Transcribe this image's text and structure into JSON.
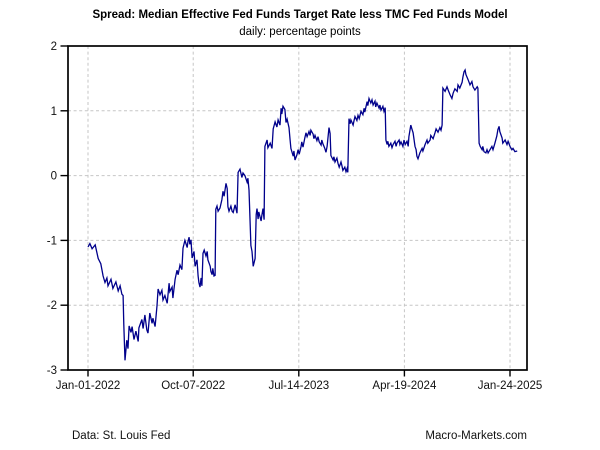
{
  "chart": {
    "title": "Spread: Median Effective Fed Funds Target Rate less TMC Fed Funds Model",
    "subtitle": "daily: percentage points",
    "footer_left": "Data: St. Louis Fed",
    "footer_right": "Macro-Markets.com",
    "line_color": "#00008b",
    "grid_color": "#c6c6c6",
    "axis_color": "#000000"
  },
  "chart_data": {
    "type": "line",
    "title": "Spread: Median Effective Fed Funds Target Rate less TMC Fed Funds Model",
    "subtitle": "daily: percentage points",
    "legend": "none",
    "grid": "dashed horizontal and vertical",
    "x_axis": {
      "unit": "days since 2022-01-01 (daily series)",
      "range": [
        0,
        1138
      ],
      "ticks": [
        {
          "day": 0,
          "label": "Jan-01-2022"
        },
        {
          "day": 279,
          "label": "Oct-07-2022"
        },
        {
          "day": 559,
          "label": "Jul-14-2023"
        },
        {
          "day": 839,
          "label": "Apr-19-2024"
        },
        {
          "day": 1119,
          "label": "Jan-24-2025"
        }
      ]
    },
    "y_axis": {
      "label": "percentage points",
      "range": [
        -3,
        2
      ],
      "ticks": [
        2,
        1,
        0,
        -1,
        -2,
        -3
      ],
      "gridlines": [
        1,
        0,
        -1,
        -2
      ]
    },
    "series": [
      {
        "name": "Spread: Median Effective Fed Funds Target Rate less TMC Fed Funds Model",
        "points": [
          [
            0,
            -1.1
          ],
          [
            5,
            -1.05
          ],
          [
            11,
            -1.13
          ],
          [
            19,
            -1.07
          ],
          [
            27,
            -1.28
          ],
          [
            34,
            -1.36
          ],
          [
            40,
            -1.55
          ],
          [
            45,
            -1.65
          ],
          [
            50,
            -1.58
          ],
          [
            53,
            -1.7
          ],
          [
            61,
            -1.6
          ],
          [
            66,
            -1.74
          ],
          [
            74,
            -1.64
          ],
          [
            80,
            -1.78
          ],
          [
            85,
            -1.7
          ],
          [
            90,
            -1.83
          ],
          [
            93,
            -1.85
          ],
          [
            95,
            -2.3
          ],
          [
            98,
            -2.85
          ],
          [
            103,
            -2.54
          ],
          [
            106,
            -2.67
          ],
          [
            109,
            -2.32
          ],
          [
            114,
            -2.42
          ],
          [
            117,
            -2.33
          ],
          [
            122,
            -2.53
          ],
          [
            127,
            -2.4
          ],
          [
            133,
            -2.56
          ],
          [
            135,
            -2.35
          ],
          [
            143,
            -2.22
          ],
          [
            146,
            -2.36
          ],
          [
            151,
            -2.15
          ],
          [
            156,
            -2.38
          ],
          [
            159,
            -2.43
          ],
          [
            164,
            -2.12
          ],
          [
            170,
            -2.28
          ],
          [
            172,
            -2.2
          ],
          [
            178,
            -2.33
          ],
          [
            183,
            -2.01
          ],
          [
            186,
            -1.75
          ],
          [
            191,
            -1.84
          ],
          [
            196,
            -1.77
          ],
          [
            199,
            -1.92
          ],
          [
            204,
            -1.85
          ],
          [
            210,
            -1.97
          ],
          [
            215,
            -1.66
          ],
          [
            217,
            -1.79
          ],
          [
            223,
            -1.72
          ],
          [
            225,
            -1.89
          ],
          [
            231,
            -1.6
          ],
          [
            236,
            -1.46
          ],
          [
            239,
            -1.53
          ],
          [
            244,
            -1.38
          ],
          [
            249,
            -1.45
          ],
          [
            252,
            -1.12
          ],
          [
            257,
            -1.0
          ],
          [
            263,
            -1.11
          ],
          [
            265,
            -1.02
          ],
          [
            268,
            -0.95
          ],
          [
            270,
            -1.06
          ],
          [
            273,
            -0.99
          ],
          [
            276,
            -1.27
          ],
          [
            281,
            -1.17
          ],
          [
            284,
            -1.4
          ],
          [
            289,
            -1.3
          ],
          [
            292,
            -1.55
          ],
          [
            294,
            -1.65
          ],
          [
            297,
            -1.72
          ],
          [
            300,
            -1.58
          ],
          [
            302,
            -1.7
          ],
          [
            305,
            -1.2
          ],
          [
            308,
            -1.15
          ],
          [
            313,
            -1.24
          ],
          [
            316,
            -1.17
          ],
          [
            318,
            -1.3
          ],
          [
            324,
            -1.4
          ],
          [
            326,
            -1.48
          ],
          [
            329,
            -1.53
          ],
          [
            331,
            -1.43
          ],
          [
            334,
            -1.55
          ],
          [
            337,
            -1.54
          ],
          [
            339,
            -0.52
          ],
          [
            342,
            -0.47
          ],
          [
            345,
            -0.55
          ],
          [
            350,
            -0.5
          ],
          [
            355,
            -0.37
          ],
          [
            358,
            -0.24
          ],
          [
            361,
            -0.32
          ],
          [
            366,
            -0.12
          ],
          [
            369,
            -0.2
          ],
          [
            371,
            -0.48
          ],
          [
            374,
            -0.55
          ],
          [
            379,
            -0.47
          ],
          [
            382,
            -0.55
          ],
          [
            385,
            -0.57
          ],
          [
            390,
            -0.45
          ],
          [
            395,
            -0.58
          ],
          [
            398,
            0.05
          ],
          [
            403,
            0.1
          ],
          [
            408,
            -0.03
          ],
          [
            411,
            0.04
          ],
          [
            416,
            0.0
          ],
          [
            422,
            -0.1
          ],
          [
            424,
            -0.04
          ],
          [
            427,
            -0.22
          ],
          [
            432,
            -1.08
          ],
          [
            435,
            -1.17
          ],
          [
            438,
            -1.4
          ],
          [
            443,
            -1.28
          ],
          [
            446,
            -0.6
          ],
          [
            448,
            -0.51
          ],
          [
            451,
            -0.67
          ],
          [
            453,
            -0.56
          ],
          [
            459,
            -0.7
          ],
          [
            461,
            -0.61
          ],
          [
            464,
            -0.51
          ],
          [
            467,
            -0.68
          ],
          [
            469,
            0.45
          ],
          [
            475,
            0.55
          ],
          [
            477,
            0.43
          ],
          [
            483,
            0.5
          ],
          [
            488,
            0.42
          ],
          [
            491,
            0.72
          ],
          [
            496,
            0.83
          ],
          [
            501,
            0.75
          ],
          [
            504,
            0.86
          ],
          [
            509,
            0.78
          ],
          [
            512,
            1.04
          ],
          [
            514,
            0.95
          ],
          [
            517,
            1.07
          ],
          [
            522,
            1.02
          ],
          [
            525,
            0.82
          ],
          [
            528,
            0.87
          ],
          [
            533,
            0.74
          ],
          [
            536,
            0.55
          ],
          [
            538,
            0.42
          ],
          [
            544,
            0.3
          ],
          [
            546,
            0.38
          ],
          [
            549,
            0.24
          ],
          [
            554,
            0.32
          ],
          [
            557,
            0.4
          ],
          [
            560,
            0.33
          ],
          [
            565,
            0.45
          ],
          [
            567,
            0.52
          ],
          [
            570,
            0.44
          ],
          [
            575,
            0.58
          ],
          [
            578,
            0.66
          ],
          [
            581,
            0.6
          ],
          [
            586,
            0.68
          ],
          [
            589,
            0.62
          ],
          [
            591,
            0.7
          ],
          [
            597,
            0.64
          ],
          [
            599,
            0.57
          ],
          [
            602,
            0.62
          ],
          [
            607,
            0.54
          ],
          [
            610,
            0.6
          ],
          [
            613,
            0.52
          ],
          [
            618,
            0.47
          ],
          [
            620,
            0.55
          ],
          [
            623,
            0.49
          ],
          [
            628,
            0.42
          ],
          [
            631,
            0.36
          ],
          [
            634,
            0.45
          ],
          [
            639,
            0.74
          ],
          [
            642,
            0.65
          ],
          [
            644,
            0.31
          ],
          [
            650,
            0.24
          ],
          [
            652,
            0.29
          ],
          [
            655,
            0.21
          ],
          [
            660,
            0.27
          ],
          [
            663,
            0.19
          ],
          [
            666,
            0.13
          ],
          [
            671,
            0.21
          ],
          [
            673,
            0.16
          ],
          [
            676,
            0.08
          ],
          [
            681,
            0.13
          ],
          [
            684,
            0.06
          ],
          [
            687,
            0.11
          ],
          [
            689,
            0.05
          ],
          [
            692,
            0.88
          ],
          [
            695,
            0.8
          ],
          [
            697,
            0.86
          ],
          [
            703,
            0.78
          ],
          [
            705,
            0.84
          ],
          [
            708,
            0.91
          ],
          [
            713,
            0.85
          ],
          [
            716,
            0.93
          ],
          [
            719,
            0.88
          ],
          [
            724,
            0.99
          ],
          [
            729,
            0.94
          ],
          [
            732,
            1.04
          ],
          [
            734,
            0.98
          ],
          [
            740,
            1.14
          ],
          [
            742,
            1.08
          ],
          [
            745,
            1.19
          ],
          [
            750,
            1.12
          ],
          [
            753,
            1.17
          ],
          [
            756,
            1.09
          ],
          [
            761,
            1.15
          ],
          [
            763,
            1.06
          ],
          [
            766,
            1.12
          ],
          [
            772,
            1.04
          ],
          [
            774,
            1.09
          ],
          [
            777,
            1.01
          ],
          [
            782,
            1.07
          ],
          [
            785,
            0.99
          ],
          [
            788,
            1.05
          ],
          [
            790,
            0.55
          ],
          [
            793,
            0.48
          ],
          [
            795,
            0.53
          ],
          [
            798,
            0.45
          ],
          [
            803,
            0.5
          ],
          [
            806,
            0.43
          ],
          [
            809,
            0.48
          ],
          [
            814,
            0.53
          ],
          [
            817,
            0.45
          ],
          [
            819,
            0.5
          ],
          [
            825,
            0.55
          ],
          [
            827,
            0.48
          ],
          [
            830,
            0.52
          ],
          [
            835,
            0.45
          ],
          [
            838,
            0.55
          ],
          [
            841,
            0.48
          ],
          [
            846,
            0.53
          ],
          [
            849,
            0.45
          ],
          [
            851,
            0.6
          ],
          [
            856,
            0.78
          ],
          [
            859,
            0.72
          ],
          [
            862,
            0.66
          ],
          [
            867,
            0.45
          ],
          [
            870,
            0.4
          ],
          [
            872,
            0.3
          ],
          [
            875,
            0.26
          ],
          [
            880,
            0.35
          ],
          [
            886,
            0.42
          ],
          [
            888,
            0.38
          ],
          [
            894,
            0.48
          ],
          [
            899,
            0.55
          ],
          [
            901,
            0.5
          ],
          [
            907,
            0.55
          ],
          [
            909,
            0.62
          ],
          [
            915,
            0.57
          ],
          [
            920,
            0.66
          ],
          [
            923,
            0.72
          ],
          [
            928,
            0.67
          ],
          [
            933,
            0.74
          ],
          [
            936,
            0.7
          ],
          [
            939,
            0.78
          ],
          [
            941,
            1.35
          ],
          [
            947,
            1.3
          ],
          [
            952,
            1.37
          ],
          [
            955,
            1.32
          ],
          [
            960,
            1.25
          ],
          [
            965,
            1.19
          ],
          [
            968,
            1.27
          ],
          [
            973,
            1.34
          ],
          [
            979,
            1.3
          ],
          [
            981,
            1.4
          ],
          [
            986,
            1.35
          ],
          [
            992,
            1.44
          ],
          [
            994,
            1.52
          ],
          [
            997,
            1.6
          ],
          [
            1000,
            1.63
          ],
          [
            1002,
            1.56
          ],
          [
            1008,
            1.48
          ],
          [
            1013,
            1.4
          ],
          [
            1018,
            1.45
          ],
          [
            1021,
            1.37
          ],
          [
            1026,
            1.32
          ],
          [
            1032,
            1.37
          ],
          [
            1034,
            1.35
          ],
          [
            1037,
            0.5
          ],
          [
            1040,
            0.45
          ],
          [
            1045,
            0.4
          ],
          [
            1047,
            0.45
          ],
          [
            1050,
            0.37
          ],
          [
            1055,
            0.35
          ],
          [
            1058,
            0.4
          ],
          [
            1061,
            0.35
          ],
          [
            1066,
            0.4
          ],
          [
            1071,
            0.45
          ],
          [
            1074,
            0.4
          ],
          [
            1079,
            0.5
          ],
          [
            1084,
            0.61
          ],
          [
            1087,
            0.71
          ],
          [
            1090,
            0.76
          ],
          [
            1092,
            0.68
          ],
          [
            1098,
            0.58
          ],
          [
            1100,
            0.5
          ],
          [
            1106,
            0.55
          ],
          [
            1111,
            0.48
          ],
          [
            1114,
            0.53
          ],
          [
            1119,
            0.45
          ],
          [
            1124,
            0.4
          ],
          [
            1127,
            0.42
          ],
          [
            1132,
            0.37
          ],
          [
            1138,
            0.38
          ]
        ]
      }
    ]
  }
}
